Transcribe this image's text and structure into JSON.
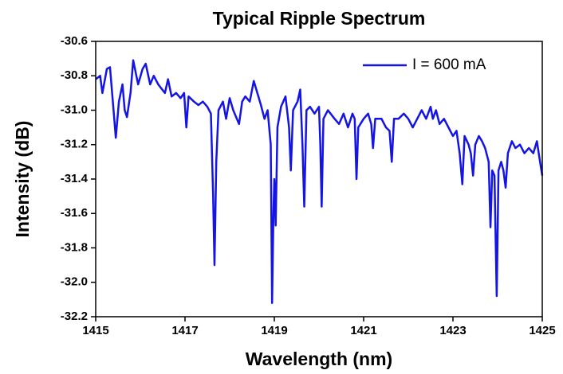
{
  "chart_data": {
    "type": "line",
    "title": "Typical Ripple Spectrum",
    "x_label": "Wavelength (nm)",
    "y_label": "Intensity (dB)",
    "xlim": [
      1415,
      1425
    ],
    "xticks": [
      1415,
      1417,
      1419,
      1421,
      1423,
      1425
    ],
    "ylim": [
      -32.2,
      -30.6
    ],
    "yticks": [
      -30.6,
      -30.8,
      {
        "value": -31,
        "label": "-31.0"
      },
      -31.2,
      -31.4,
      -31.6,
      -31.8,
      {
        "value": -32,
        "label": "-32.0"
      },
      -32.2
    ],
    "legend": "upper right",
    "x": [
      1415.0,
      1415.1,
      1415.15,
      1415.25,
      1415.32,
      1415.4,
      1415.45,
      1415.52,
      1415.6,
      1415.65,
      1415.7,
      1415.78,
      1415.84,
      1415.95,
      1416.05,
      1416.12,
      1416.22,
      1416.3,
      1416.4,
      1416.55,
      1416.62,
      1416.7,
      1416.8,
      1416.9,
      1416.98,
      1417.03,
      1417.08,
      1417.2,
      1417.3,
      1417.4,
      1417.5,
      1417.58,
      1417.63,
      1417.66,
      1417.7,
      1417.75,
      1417.85,
      1417.92,
      1418.0,
      1418.08,
      1418.21,
      1418.28,
      1418.35,
      1418.45,
      1418.54,
      1418.62,
      1418.7,
      1418.78,
      1418.85,
      1418.92,
      1418.95,
      1418.98,
      1419.0,
      1419.03,
      1419.07,
      1419.15,
      1419.25,
      1419.33,
      1419.37,
      1419.42,
      1419.52,
      1419.58,
      1419.63,
      1419.67,
      1419.72,
      1419.8,
      1419.9,
      1420.0,
      1420.03,
      1420.06,
      1420.1,
      1420.2,
      1420.35,
      1420.45,
      1420.55,
      1420.65,
      1420.75,
      1420.8,
      1420.84,
      1420.88,
      1421.0,
      1421.1,
      1421.17,
      1421.21,
      1421.26,
      1421.4,
      1421.5,
      1421.58,
      1421.63,
      1421.68,
      1421.78,
      1421.9,
      1422.0,
      1422.1,
      1422.2,
      1422.3,
      1422.4,
      1422.5,
      1422.55,
      1422.62,
      1422.7,
      1422.8,
      1422.9,
      1423.0,
      1423.08,
      1423.15,
      1423.21,
      1423.26,
      1423.35,
      1423.4,
      1423.45,
      1423.5,
      1423.58,
      1423.65,
      1423.72,
      1423.8,
      1423.84,
      1423.88,
      1423.93,
      1423.98,
      1424.02,
      1424.08,
      1424.13,
      1424.18,
      1424.23,
      1424.32,
      1424.4,
      1424.5,
      1424.6,
      1424.7,
      1424.8,
      1424.88,
      1424.95,
      1425.0
    ],
    "series": [
      {
        "name": "I = 600 mA",
        "color": "#1414e6",
        "values": [
          -30.82,
          -30.8,
          -30.9,
          -30.76,
          -30.75,
          -31.0,
          -31.16,
          -30.95,
          -30.85,
          -31.0,
          -31.04,
          -30.9,
          -30.71,
          -30.85,
          -30.76,
          -30.73,
          -30.85,
          -30.8,
          -30.85,
          -30.9,
          -30.82,
          -30.92,
          -30.9,
          -30.93,
          -30.9,
          -31.1,
          -30.92,
          -30.95,
          -30.97,
          -30.95,
          -30.98,
          -31.02,
          -31.5,
          -31.9,
          -31.3,
          -31.0,
          -30.95,
          -31.05,
          -30.93,
          -31.0,
          -31.08,
          -30.95,
          -30.92,
          -30.95,
          -30.83,
          -30.9,
          -30.97,
          -31.05,
          -31.0,
          -31.2,
          -32.12,
          -31.6,
          -31.4,
          -31.67,
          -31.1,
          -30.98,
          -30.92,
          -31.1,
          -31.35,
          -31.0,
          -30.95,
          -30.88,
          -31.2,
          -31.56,
          -31.0,
          -30.98,
          -31.02,
          -30.98,
          -31.2,
          -31.56,
          -31.05,
          -31.0,
          -31.05,
          -31.08,
          -31.02,
          -31.1,
          -31.02,
          -31.05,
          -31.4,
          -31.1,
          -31.05,
          -31.02,
          -31.08,
          -31.22,
          -31.05,
          -31.05,
          -31.1,
          -31.12,
          -31.3,
          -31.05,
          -31.05,
          -31.02,
          -31.05,
          -31.1,
          -31.05,
          -31.0,
          -31.05,
          -30.98,
          -31.05,
          -31.0,
          -31.08,
          -31.05,
          -31.1,
          -31.15,
          -31.12,
          -31.25,
          -31.43,
          -31.15,
          -31.2,
          -31.25,
          -31.38,
          -31.2,
          -31.15,
          -31.18,
          -31.22,
          -31.3,
          -31.68,
          -31.35,
          -31.38,
          -32.08,
          -31.35,
          -31.3,
          -31.35,
          -31.45,
          -31.25,
          -31.18,
          -31.22,
          -31.2,
          -31.25,
          -31.22,
          -31.25,
          -31.18,
          -31.3,
          -31.38
        ]
      }
    ]
  }
}
